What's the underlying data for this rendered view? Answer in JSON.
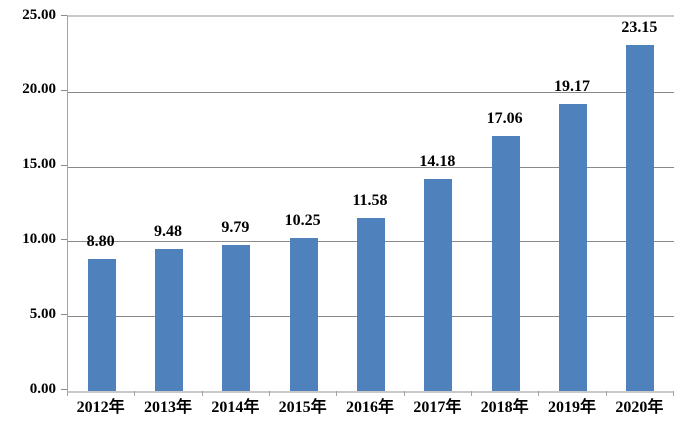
{
  "chart_data": {
    "type": "bar",
    "title": "",
    "xlabel": "",
    "ylabel": "",
    "categories": [
      "2012年",
      "2013年",
      "2014年",
      "2015年",
      "2016年",
      "2017年",
      "2018年",
      "2019年",
      "2020年"
    ],
    "values": [
      8.8,
      9.48,
      9.79,
      10.25,
      11.58,
      14.18,
      17.06,
      19.17,
      23.15
    ],
    "value_labels": [
      "8.80",
      "9.48",
      "9.79",
      "10.25",
      "11.58",
      "14.18",
      "17.06",
      "19.17",
      "23.15"
    ],
    "ylim": [
      0,
      25
    ],
    "y_ticks": [
      0,
      5,
      10,
      15,
      20,
      25
    ],
    "y_tick_labels": [
      "0.00",
      "5.00",
      "10.00",
      "15.00",
      "20.00",
      "25.00"
    ],
    "grid": true,
    "legend_position": "none",
    "colors": {
      "bar_fill": "#4f81bd",
      "gridline": "#898989",
      "axis_boundary": "#c9c9c9",
      "y_axis_line": "#a3a3a3",
      "text": "#000000",
      "background": "#ffffff"
    }
  }
}
